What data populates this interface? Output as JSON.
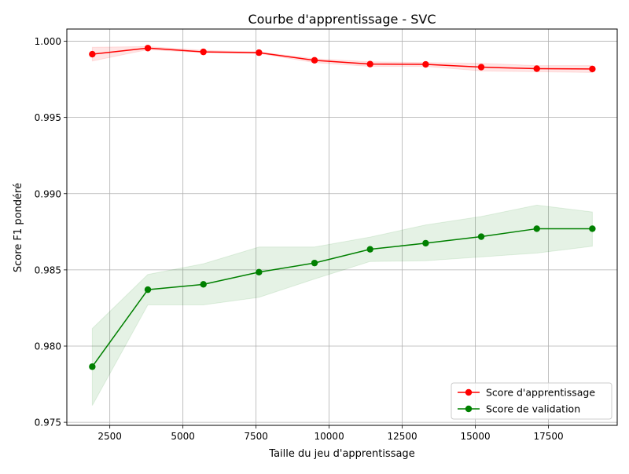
{
  "chart_data": {
    "type": "line",
    "title": "Courbe d'apprentissage - SVC",
    "xlabel": "Taille du jeu d'apprentissage",
    "ylabel": "Score F1 pondéré",
    "xlim": [
      1030,
      19850
    ],
    "ylim": [
      0.9748,
      1.0008
    ],
    "x_ticks": [
      2500,
      5000,
      7500,
      10000,
      12500,
      15000,
      17500
    ],
    "x_tick_labels": [
      "2500",
      "5000",
      "7500",
      "10000",
      "12500",
      "15000",
      "17500"
    ],
    "y_ticks": [
      0.975,
      0.98,
      0.985,
      0.99,
      0.995,
      1.0
    ],
    "y_tick_labels": [
      "0.975",
      "0.980",
      "0.985",
      "0.990",
      "0.995",
      "1.000"
    ],
    "grid": true,
    "legend_position": "bottom-right",
    "x": [
      1900,
      3800,
      5700,
      7600,
      9500,
      11400,
      13300,
      15200,
      17100,
      19000
    ],
    "series": [
      {
        "name": "Score d'apprentissage",
        "color": "#ff0000",
        "band_color": "#ff0000",
        "values": [
          0.99915,
          0.99955,
          0.9993,
          0.99925,
          0.99875,
          0.9985,
          0.99848,
          0.9983,
          0.9982,
          0.99818
        ],
        "band_lower": [
          0.9987,
          0.99945,
          0.99925,
          0.9992,
          0.9986,
          0.99835,
          0.99835,
          0.99805,
          0.998,
          0.99795
        ],
        "band_upper": [
          0.9996,
          0.99965,
          0.9994,
          0.9993,
          0.99885,
          0.99865,
          0.9986,
          0.99855,
          0.9984,
          0.9984
        ]
      },
      {
        "name": "Score de validation",
        "color": "#008000",
        "band_color": "#008000",
        "values": [
          0.97865,
          0.9837,
          0.98405,
          0.98485,
          0.98545,
          0.98635,
          0.98675,
          0.98718,
          0.9877,
          0.9877
        ],
        "band_lower": [
          0.9761,
          0.9827,
          0.9827,
          0.9832,
          0.9844,
          0.98555,
          0.9856,
          0.98585,
          0.9861,
          0.98655
        ],
        "band_upper": [
          0.98115,
          0.9847,
          0.9854,
          0.9865,
          0.9865,
          0.98715,
          0.98795,
          0.9885,
          0.98925,
          0.9888
        ]
      }
    ]
  }
}
